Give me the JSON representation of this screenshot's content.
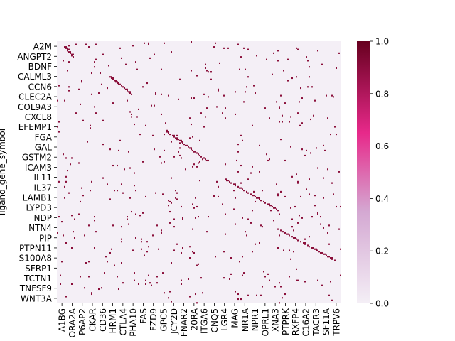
{
  "chart_data": {
    "type": "heatmap",
    "ylabel": "ligand_gene_symbol",
    "y_tick_labels": [
      "A2M",
      "ANGPT2",
      "BDNF",
      "CALML3",
      "CCN6",
      "CLEC2A",
      "COL9A3",
      "CXCL8",
      "EFEMP1",
      "FGA",
      "GAL",
      "GSTM2",
      "ICAM3",
      "IL11",
      "IL37",
      "LAMB1",
      "LYPD3",
      "NDP",
      "NTN4",
      "PIP",
      "PTPN11",
      "S100A8",
      "SFRP1",
      "TCTN1",
      "TNFSF9",
      "WNT3A"
    ],
    "x_tick_labels": [
      "A1BG",
      "ORA2A",
      "P6AP2",
      "CKAR",
      "CD36",
      "HRM1",
      "CTLA4",
      "PHA10",
      "FAS",
      "FZD9",
      "GPC5",
      "JCY2D",
      "FNAR2",
      "20RA",
      "ITGA6",
      "CNQ5",
      "LGR4",
      "MAG",
      "NR1A",
      "NPR1",
      "OPRL1",
      "XNA3",
      "PTPRK",
      "RXFP4",
      "C16A2",
      "TACR3",
      "SF11A",
      "TRPV6"
    ],
    "n_rows": 210,
    "n_cols": 200,
    "value_range": [
      0,
      1
    ],
    "colorbar_ticks": [
      "0.0",
      "0.2",
      "0.4",
      "0.6",
      "0.8",
      "1.0"
    ],
    "colormap": [
      "#f4eff6",
      "#d4a8d2",
      "#e7298a",
      "#67001f"
    ],
    "background_value": 0.0,
    "highlight_value": 1.0,
    "highlight_color": "#8a0f3a",
    "diagonal_bands": [
      {
        "rows": [
          4,
          12
        ],
        "cols": [
          5,
          11
        ]
      },
      {
        "rows": [
          28,
          42
        ],
        "cols": [
          37,
          52
        ]
      },
      {
        "rows": [
          72,
          95
        ],
        "cols": [
          77,
          105
        ]
      },
      {
        "rows": [
          110,
          135
        ],
        "cols": [
          118,
          155
        ]
      },
      {
        "rows": [
          150,
          175
        ],
        "cols": [
          155,
          195
        ]
      }
    ]
  }
}
